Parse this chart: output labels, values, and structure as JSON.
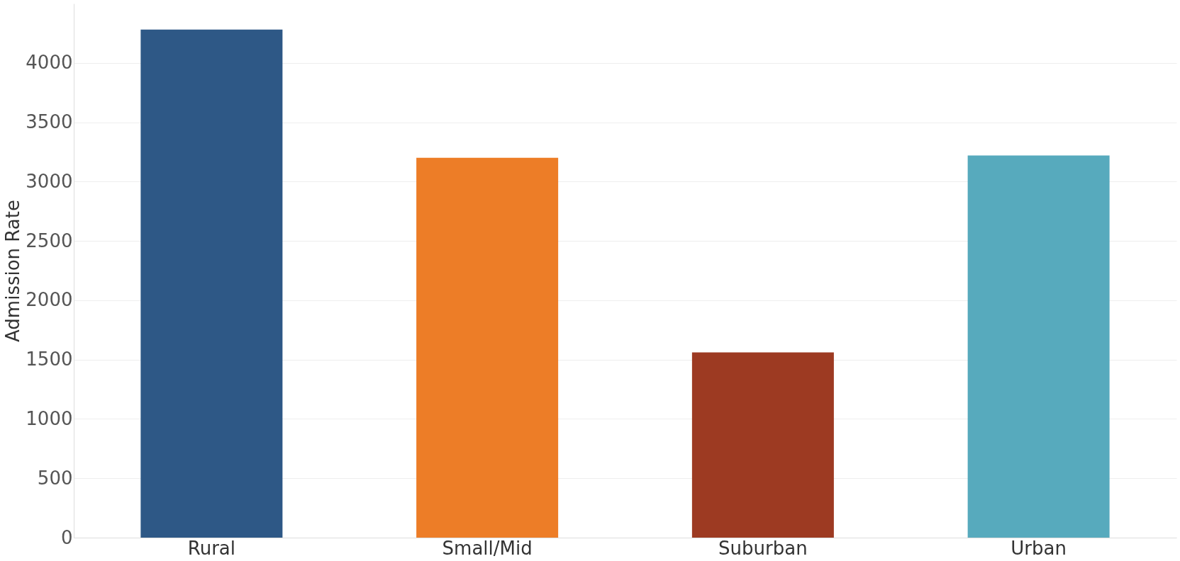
{
  "chart_data": {
    "type": "bar",
    "ylabel": "Admission Rate",
    "categories": [
      "Rural",
      "Small/Mid",
      "Suburban",
      "Urban"
    ],
    "values": [
      4280,
      3200,
      1560,
      3220
    ],
    "colors": [
      "#2e5886",
      "#ed7d27",
      "#9d3a22",
      "#57aabd"
    ],
    "ylim": [
      0,
      4500
    ],
    "yticks": [
      0,
      500,
      1000,
      1500,
      2000,
      2500,
      3000,
      3500,
      4000
    ],
    "grid": "y"
  }
}
